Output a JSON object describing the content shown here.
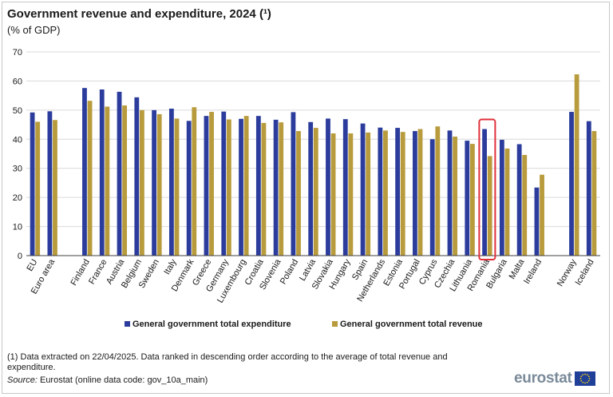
{
  "title": "Government revenue and expenditure, 2024 (¹)",
  "subtitle": "(% of GDP)",
  "footnote": "(1) Data extracted on 22/04/2025. Data ranked in descending order according to the average of total revenue  and expenditure.",
  "source": {
    "label": "Source:",
    "text": " Eurostat (online data code: gov_10a_main)"
  },
  "logo": {
    "text": "eurostat",
    "flag_icon": "eu-flag-icon"
  },
  "colors": {
    "expenditure": "#2b3c9c",
    "revenue": "#b89b3c",
    "highlight": "#e0303a",
    "grid": "#d9d9d9",
    "axis": "#404040"
  },
  "chart_data": {
    "type": "bar",
    "categories": [
      "EU",
      "Euro area",
      "Finland",
      "France",
      "Austria",
      "Belgium",
      "Sweden",
      "Italy",
      "Denmark",
      "Greece",
      "Germany",
      "Luxembourg",
      "Croatia",
      "Slovenia",
      "Poland",
      "Latvia",
      "Slovakia",
      "Hungary",
      "Spain",
      "Netherlands",
      "Estonia",
      "Portugal",
      "Cyprus",
      "Czechia",
      "Lithuania",
      "Romania",
      "Bulgaria",
      "Malta",
      "Ireland",
      "Norway",
      "Iceland"
    ],
    "groups": [
      2,
      27,
      2
    ],
    "series": [
      {
        "name": "General government total expenditure",
        "values": [
          49.2,
          49.6,
          57.6,
          57.1,
          56.3,
          54.4,
          50.0,
          50.5,
          46.3,
          48.0,
          49.5,
          47.0,
          48.0,
          46.7,
          49.3,
          45.9,
          47.1,
          46.9,
          45.4,
          44.0,
          43.9,
          42.8,
          40.0,
          43.0,
          39.5,
          43.5,
          39.8,
          38.3,
          23.4,
          49.4,
          46.2
        ],
        "color": "#2b3c9c"
      },
      {
        "name": "General government total revenue",
        "values": [
          46.0,
          46.6,
          53.2,
          51.2,
          51.6,
          50.0,
          48.6,
          47.1,
          51.0,
          49.4,
          46.8,
          48.0,
          45.6,
          45.8,
          42.8,
          43.9,
          42.0,
          42.0,
          42.3,
          43.0,
          42.5,
          43.5,
          44.4,
          40.9,
          38.4,
          34.2,
          36.8,
          34.6,
          27.8,
          62.3,
          42.8
        ]
      }
    ],
    "highlight": "Romania",
    "xlabel": "",
    "ylabel": "",
    "ylim": [
      0,
      70
    ],
    "yticks": [
      0,
      10,
      20,
      30,
      40,
      50,
      60,
      70
    ],
    "grid": true,
    "legend": "bottom-center"
  }
}
